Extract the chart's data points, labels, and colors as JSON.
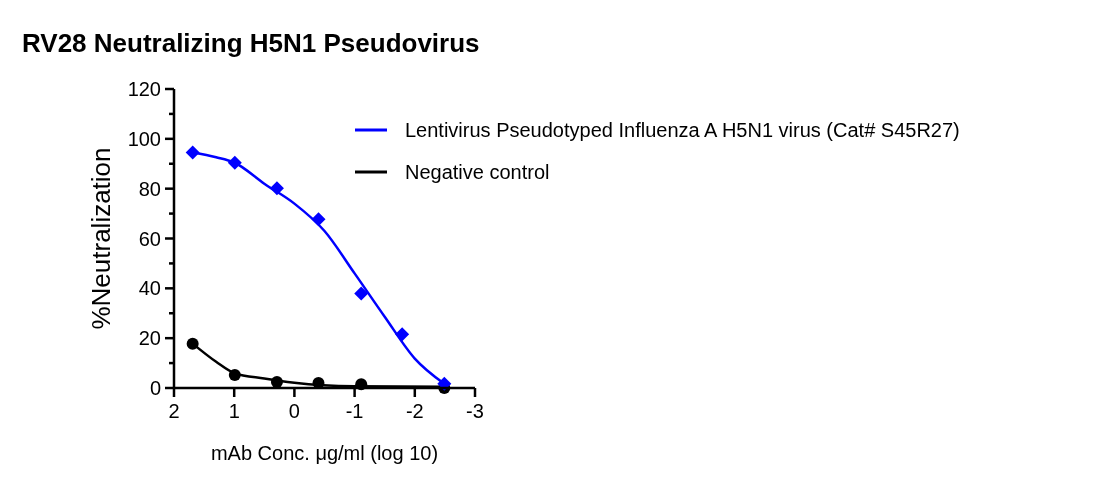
{
  "chart_data": {
    "type": "scatter",
    "title": "RV28 Neutralizing H5N1 Pseudovirus",
    "xlabel": "mAb Conc. μg/ml (log 10)",
    "ylabel": "%Neutralization",
    "xlim": [
      2,
      -3
    ],
    "xticks": [
      2,
      1,
      0,
      -1,
      -2,
      -3
    ],
    "ylim": [
      0,
      120
    ],
    "yticks": [
      0,
      {
        "value": 10,
        "label": null
      },
      20,
      {
        "value": 30,
        "label": null
      },
      40,
      {
        "value": 50,
        "label": null
      },
      60,
      {
        "value": 70,
        "label": null
      },
      80,
      {
        "value": 90,
        "label": null
      },
      100,
      {
        "value": 110,
        "label": null
      },
      120
    ],
    "legend": "right",
    "grid": false,
    "series": [
      {
        "name": "Lentivirus Pseudotyped Influenza A H5N1 virus (Cat# S45R27)",
        "type": "line",
        "color": "#0000ff",
        "marker": "none",
        "x": [
          1.69,
          1.3,
          1.0,
          0.5,
          0,
          -0.5,
          -1,
          -1.5,
          -2,
          -2.49
        ],
        "values": [
          94.5,
          92.6,
          90.5,
          82,
          74,
          63,
          46,
          28.6,
          11.8,
          1.7
        ]
      },
      {
        "name": "Negative control",
        "type": "line",
        "color": "#000000",
        "marker": "none",
        "x": [
          1.69,
          1.3,
          1.0,
          0.5,
          0,
          -1,
          -2.49
        ],
        "values": [
          17.8,
          10.5,
          6,
          3.8,
          2.1,
          0.7,
          0.5
        ]
      },
      {
        "color": "#000000",
        "marker": "circle",
        "x": [
          1.69,
          0.99,
          0.29,
          -0.4,
          -1.11,
          -2.49
        ],
        "values": [
          17.8,
          5.2,
          2.4,
          2.0,
          1.5,
          0
        ]
      },
      {
        "color": "#0000ff",
        "marker": "diamond",
        "x": [
          1.69,
          0.99,
          0.29,
          -0.4,
          -1.11,
          -1.79,
          -2.49
        ],
        "values": [
          94.5,
          90.4,
          80.2,
          67.7,
          37.9,
          21.6,
          1.7
        ]
      }
    ]
  }
}
